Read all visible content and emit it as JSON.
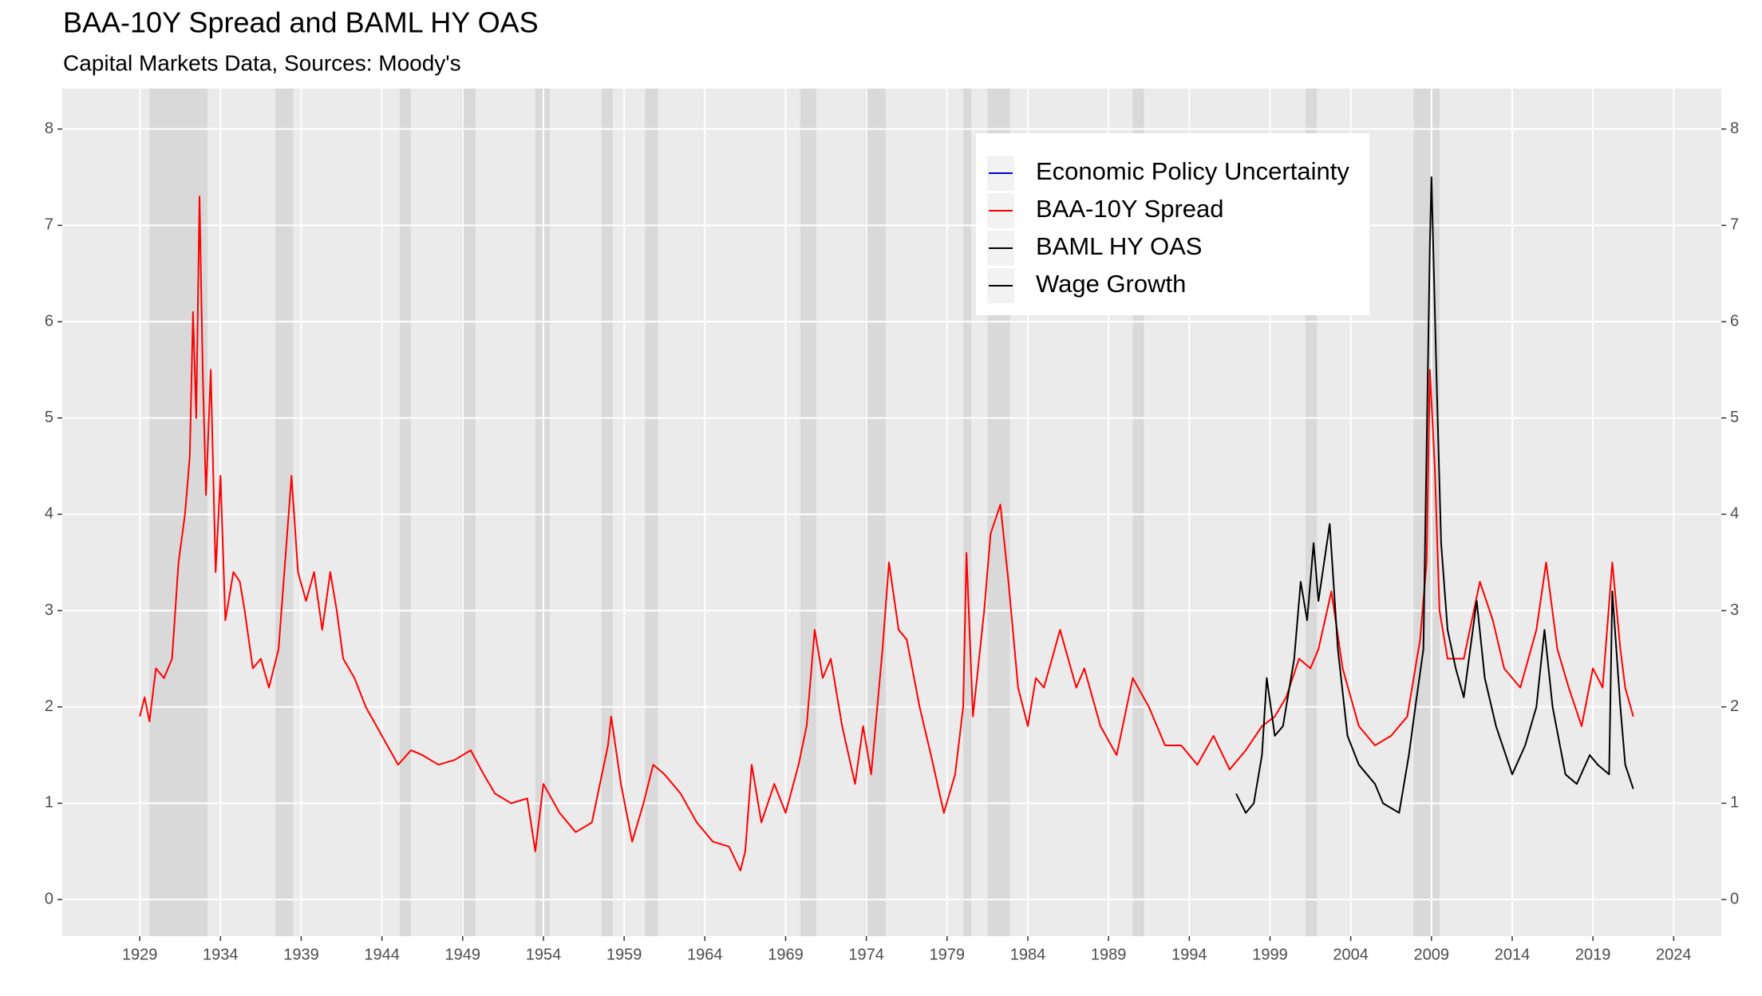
{
  "chart_data": {
    "type": "line",
    "title": "BAA-10Y Spread and BAML HY OAS",
    "subtitle": "Capital Markets Data, Sources: Moody's",
    "xlim": [
      1924.2,
      2026.95
    ],
    "xticks": [
      1929,
      1934,
      1939,
      1944,
      1949,
      1954,
      1959,
      1964,
      1969,
      1974,
      1979,
      1984,
      1989,
      1994,
      1999,
      2004,
      2009,
      2014,
      2019,
      2024
    ],
    "ylim": [
      -0.38,
      8.42
    ],
    "yticks": [
      0,
      1,
      2,
      3,
      4,
      5,
      6,
      7,
      8
    ],
    "y2lim": [
      -0.38,
      8.42
    ],
    "y2ticks": [
      0,
      1,
      2,
      3,
      4,
      5,
      6,
      7,
      8
    ],
    "grid": true,
    "recessions": [
      [
        1929.6,
        1933.2
      ],
      [
        1937.4,
        1938.5
      ],
      [
        1945.1,
        1945.8
      ],
      [
        1948.9,
        1949.8
      ],
      [
        1953.5,
        1954.4
      ],
      [
        1957.6,
        1958.3
      ],
      [
        1960.3,
        1961.1
      ],
      [
        1969.9,
        1970.9
      ],
      [
        1973.9,
        1975.2
      ],
      [
        1980.0,
        1980.5
      ],
      [
        1981.5,
        1982.9
      ],
      [
        1990.5,
        1991.2
      ],
      [
        2001.2,
        2001.9
      ],
      [
        2007.9,
        2009.5
      ]
    ],
    "series": [
      {
        "name": "Economic Policy Uncertainty",
        "color": "#0000cc",
        "x": [],
        "values": []
      },
      {
        "name": "BAA-10Y Spread",
        "color": "#ff0000",
        "x": [
          1929.0,
          1929.3,
          1929.6,
          1930.0,
          1930.5,
          1931.0,
          1931.4,
          1931.8,
          1932.1,
          1932.3,
          1932.5,
          1932.7,
          1932.9,
          1933.1,
          1933.4,
          1933.7,
          1934.0,
          1934.3,
          1934.8,
          1935.2,
          1935.5,
          1936.0,
          1936.5,
          1937.0,
          1937.6,
          1938.0,
          1938.4,
          1938.8,
          1939.3,
          1939.8,
          1940.3,
          1940.8,
          1941.2,
          1941.6,
          1942.3,
          1943.0,
          1944.0,
          1945.0,
          1945.8,
          1946.5,
          1947.5,
          1948.5,
          1949.5,
          1950.3,
          1951.0,
          1952.0,
          1953.0,
          1953.5,
          1954.0,
          1955.0,
          1956.0,
          1957.0,
          1958.0,
          1958.2,
          1958.8,
          1959.5,
          1960.2,
          1960.8,
          1961.5,
          1962.5,
          1963.5,
          1964.5,
          1965.5,
          1966.2,
          1966.5,
          1966.9,
          1967.5,
          1968.3,
          1969.0,
          1969.8,
          1970.3,
          1970.8,
          1971.3,
          1971.8,
          1972.5,
          1973.3,
          1973.8,
          1974.3,
          1975.0,
          1975.4,
          1976.0,
          1976.5,
          1977.3,
          1978.0,
          1978.8,
          1979.5,
          1980.0,
          1980.2,
          1980.6,
          1981.3,
          1981.7,
          1982.3,
          1982.8,
          1983.4,
          1984.0,
          1984.5,
          1985.0,
          1986.0,
          1987.0,
          1987.5,
          1988.5,
          1989.5,
          1990.5,
          1991.5,
          1992.5,
          1993.5,
          1994.5,
          1995.5,
          1996.5,
          1997.5,
          1998.5,
          1999.3,
          2000.0,
          2000.8,
          2001.5,
          2002.0,
          2002.8,
          2003.5,
          2004.5,
          2005.5,
          2006.5,
          2007.5,
          2008.3,
          2008.7,
          2008.9,
          2009.2,
          2009.5,
          2010.0,
          2011.0,
          2012.0,
          2012.8,
          2013.5,
          2014.5,
          2015.5,
          2016.1,
          2016.8,
          2017.5,
          2018.3,
          2019.0,
          2019.6,
          2020.2,
          2020.7,
          2021.0,
          2021.5
        ],
        "values": [
          1.9,
          2.1,
          1.85,
          2.4,
          2.3,
          2.5,
          3.5,
          4.0,
          4.6,
          6.1,
          5.0,
          7.3,
          5.5,
          4.2,
          5.5,
          3.4,
          4.4,
          2.9,
          3.4,
          3.3,
          3.0,
          2.4,
          2.5,
          2.2,
          2.6,
          3.5,
          4.4,
          3.4,
          3.1,
          3.4,
          2.8,
          3.4,
          3.0,
          2.5,
          2.3,
          2.0,
          1.7,
          1.4,
          1.55,
          1.5,
          1.4,
          1.45,
          1.55,
          1.3,
          1.1,
          1.0,
          1.05,
          0.5,
          1.2,
          0.9,
          0.7,
          0.8,
          1.6,
          1.9,
          1.2,
          0.6,
          1.0,
          1.4,
          1.3,
          1.1,
          0.8,
          0.6,
          0.55,
          0.3,
          0.5,
          1.4,
          0.8,
          1.2,
          0.9,
          1.4,
          1.8,
          2.8,
          2.3,
          2.5,
          1.8,
          1.2,
          1.8,
          1.3,
          2.6,
          3.5,
          2.8,
          2.7,
          2.0,
          1.5,
          0.9,
          1.3,
          2.0,
          3.6,
          1.9,
          3.0,
          3.8,
          4.1,
          3.3,
          2.2,
          1.8,
          2.3,
          2.2,
          2.8,
          2.2,
          2.4,
          1.8,
          1.5,
          2.3,
          2.0,
          1.6,
          1.6,
          1.4,
          1.7,
          1.35,
          1.55,
          1.8,
          1.9,
          2.1,
          2.5,
          2.4,
          2.6,
          3.2,
          2.4,
          1.8,
          1.6,
          1.7,
          1.9,
          2.7,
          3.5,
          5.5,
          4.5,
          3.0,
          2.5,
          2.5,
          3.3,
          2.9,
          2.4,
          2.2,
          2.8,
          3.5,
          2.6,
          2.2,
          1.8,
          2.4,
          2.2,
          3.5,
          2.6,
          2.2,
          1.9
        ]
      },
      {
        "name": "BAML HY OAS",
        "color": "#000000",
        "x": [
          1996.9,
          1997.5,
          1998.0,
          1998.5,
          1998.8,
          1999.3,
          1999.8,
          2000.5,
          2000.9,
          2001.3,
          2001.7,
          2002.0,
          2002.7,
          2003.2,
          2003.8,
          2004.5,
          2005.5,
          2006.0,
          2007.0,
          2007.6,
          2008.0,
          2008.5,
          2008.9,
          2009.0,
          2009.3,
          2009.6,
          2010.0,
          2010.5,
          2011.0,
          2011.8,
          2012.3,
          2013.0,
          2014.0,
          2014.8,
          2015.5,
          2016.0,
          2016.5,
          2017.3,
          2018.0,
          2018.8,
          2019.3,
          2020.0,
          2020.2,
          2020.7,
          2021.0,
          2021.5
        ],
        "values": [
          1.1,
          0.9,
          1.0,
          1.5,
          2.3,
          1.7,
          1.8,
          2.5,
          3.3,
          2.9,
          3.7,
          3.1,
          3.9,
          2.6,
          1.7,
          1.4,
          1.2,
          1.0,
          0.9,
          1.5,
          2.0,
          2.6,
          6.8,
          7.5,
          5.5,
          3.7,
          2.8,
          2.4,
          2.1,
          3.1,
          2.3,
          1.8,
          1.3,
          1.6,
          2.0,
          2.8,
          2.0,
          1.3,
          1.2,
          1.5,
          1.4,
          1.3,
          3.2,
          2.0,
          1.4,
          1.15
        ]
      },
      {
        "name": "Wage Growth",
        "color": "#000000",
        "x": [],
        "values": []
      }
    ]
  }
}
